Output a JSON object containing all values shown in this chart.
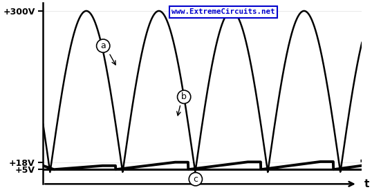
{
  "bg_color": "white",
  "y_ticks": [
    5,
    18,
    300
  ],
  "y_tick_labels": [
    "+5V",
    "+18V",
    "+300V"
  ],
  "x_label": "t",
  "label_a": "a",
  "label_b": "b",
  "label_c": "c",
  "amplitude_a": 300,
  "v18": 18,
  "v5": 5,
  "ymin": -22,
  "ymax": 315,
  "xmin": -0.3,
  "xmax": 13.5,
  "sine_period": 6.2831853,
  "title": "www.ExtremeCircuits.net",
  "title_color": "#0000cc",
  "title_box_color": "#0000cc"
}
